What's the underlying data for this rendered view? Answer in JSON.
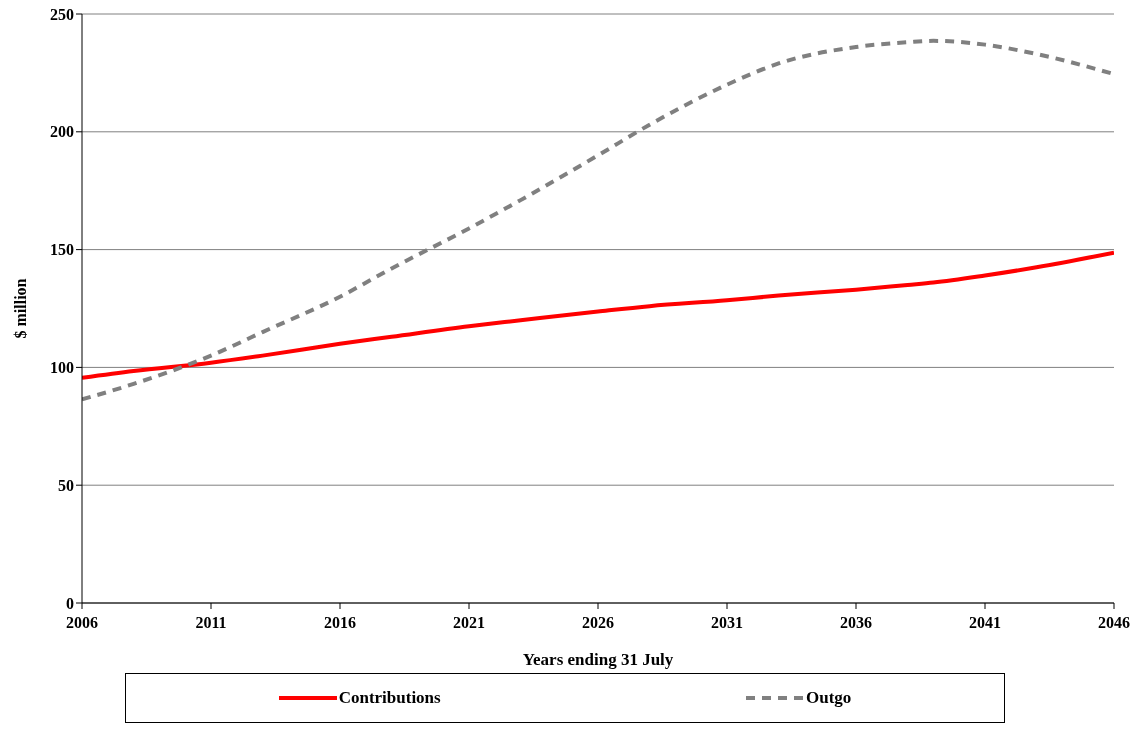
{
  "chart_data": {
    "type": "line",
    "xlabel": "Years ending 31 July",
    "ylabel": "$ million",
    "x": [
      2006,
      2008,
      2011,
      2013,
      2016,
      2018,
      2021,
      2023,
      2026,
      2028,
      2031,
      2033,
      2036,
      2038,
      2039,
      2041,
      2043,
      2046
    ],
    "series": [
      {
        "name": "Contributions",
        "color": "#ff0000",
        "line_style": "solid",
        "values": [
          95.6,
          98.5,
          102,
          105,
          110,
          113,
          117.5,
          120,
          123.7,
          126,
          128.5,
          130.5,
          133,
          135,
          136,
          139,
          142.5,
          148.7
        ]
      },
      {
        "name": "Outgo",
        "color": "#808080",
        "line_style": "dashed",
        "values": [
          86.4,
          93,
          105,
          115,
          130,
          142,
          159,
          171,
          190,
          203,
          220,
          229,
          236,
          238,
          238.6,
          237,
          233,
          224.5
        ]
      }
    ],
    "xlim": [
      2006,
      2046
    ],
    "xticks": [
      2006,
      2011,
      2016,
      2021,
      2026,
      2031,
      2036,
      2041,
      2046
    ],
    "ylim": [
      0,
      250
    ],
    "yticks": [
      0,
      50,
      100,
      150,
      200,
      250
    ],
    "grid": "y",
    "legend": "bottom",
    "marker": "none"
  }
}
